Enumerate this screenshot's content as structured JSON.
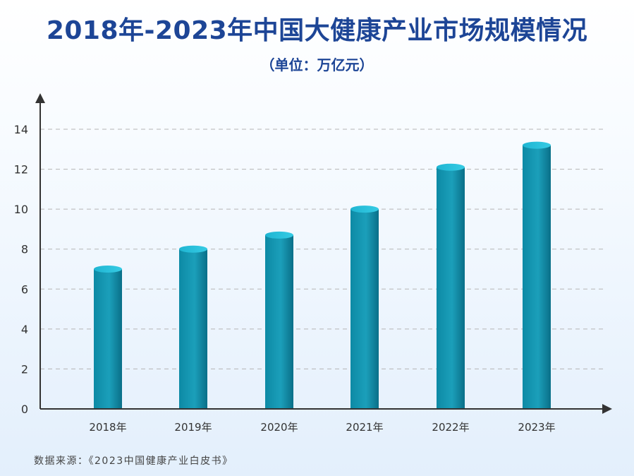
{
  "header": {
    "title": "2018年-2023年中国大健康产业市场规模情况",
    "subtitle": "（单位：万亿元）"
  },
  "footer": {
    "source": "数据来源：《2023中国健康产业白皮书》"
  },
  "colors": {
    "title": "#1d4596",
    "bar_main": "#1a9bb5",
    "bar_dark": "#0a6f88",
    "bar_top": "#2cc4df",
    "axis": "#333333",
    "grid": "#b5b5b5"
  },
  "chart_data": {
    "type": "bar",
    "title": "2018年-2023年中国大健康产业市场规模情况",
    "subtitle": "（单位：万亿元）",
    "categories": [
      "2018年",
      "2019年",
      "2020年",
      "2021年",
      "2022年",
      "2023年"
    ],
    "values": [
      7.0,
      8.0,
      8.7,
      10.0,
      12.1,
      13.2
    ],
    "ylim": [
      0,
      14
    ],
    "yticks": [
      0,
      2,
      4,
      6,
      8,
      10,
      12,
      14
    ],
    "ytick_labels": [
      "0",
      "2",
      "4",
      "6",
      "8",
      "10",
      "12",
      "14"
    ],
    "grid": "dashed horizontal",
    "legend": "none",
    "xlabel": "",
    "ylabel": ""
  }
}
